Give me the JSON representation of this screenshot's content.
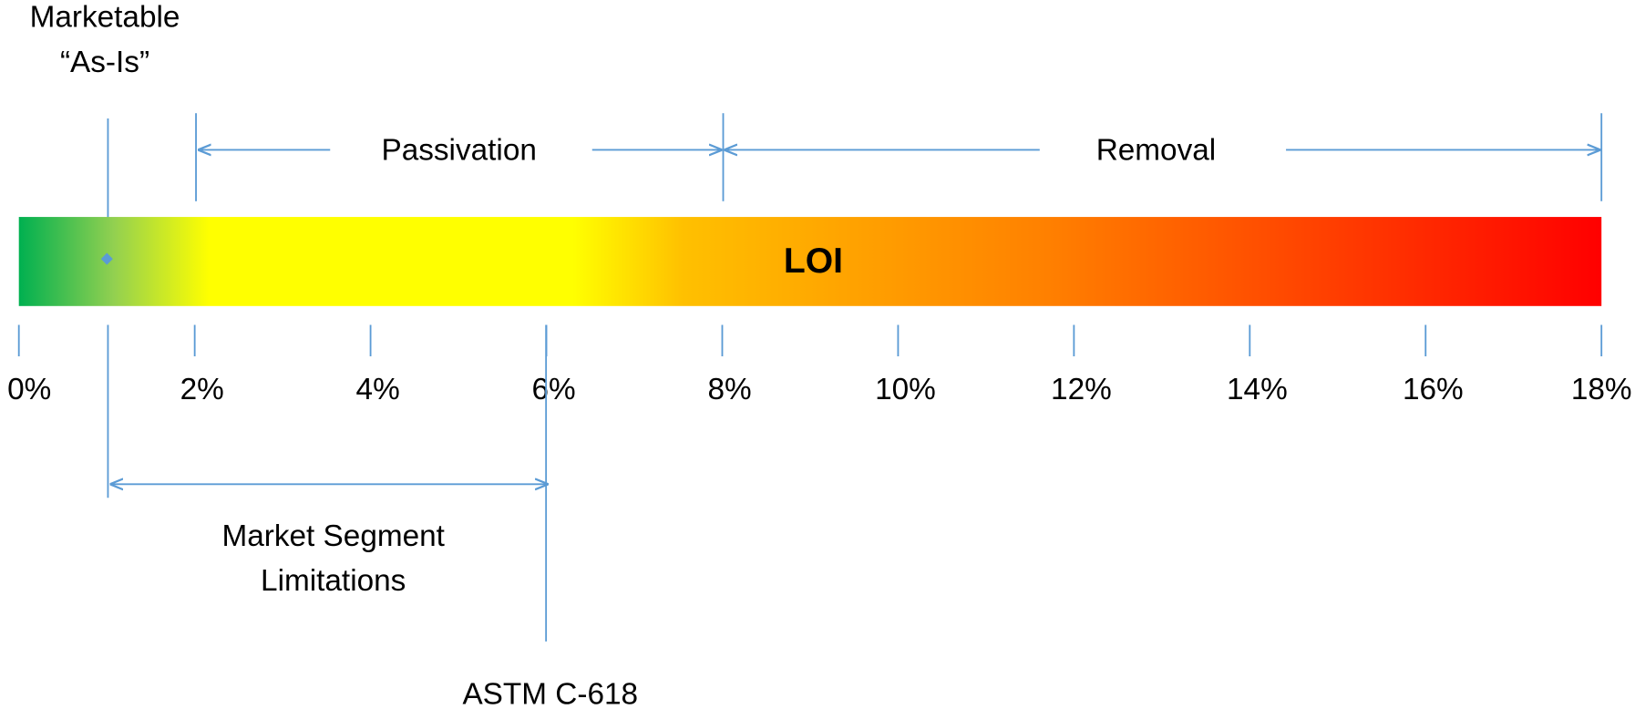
{
  "marketable": {
    "line1": "Marketable",
    "line2": "“As-Is”"
  },
  "bar_label": "LOI",
  "ranges": {
    "passivation": "Passivation",
    "removal": "Removal",
    "market_segment": {
      "line1": "Market Segment",
      "line2": "Limitations"
    }
  },
  "standard": "ASTM C-618",
  "ticks": [
    "0%",
    "2%",
    "4%",
    "6%",
    "8%",
    "10%",
    "12%",
    "14%",
    "16%",
    "18%"
  ]
}
